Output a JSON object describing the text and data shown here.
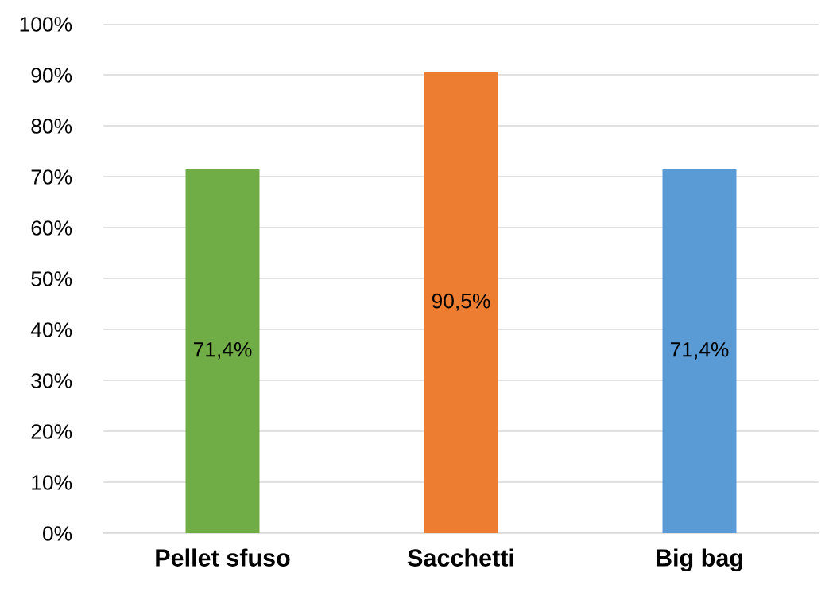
{
  "chart_data": {
    "type": "bar",
    "categories": [
      "Pellet sfuso",
      "Sacchetti",
      "Big bag"
    ],
    "values": [
      71.4,
      90.5,
      71.4
    ],
    "colors": [
      "#70ad47",
      "#ed7d31",
      "#5b9bd5"
    ],
    "value_labels": [
      "71,4%",
      "90,5%",
      "71,4%"
    ],
    "ylim": [
      0,
      100
    ],
    "yticks": [
      {
        "value": 0,
        "label": "0%"
      },
      {
        "value": 10,
        "label": "10%"
      },
      {
        "value": 20,
        "label": "20%"
      },
      {
        "value": 30,
        "label": "30%"
      },
      {
        "value": 40,
        "label": "40%"
      },
      {
        "value": 50,
        "label": "50%"
      },
      {
        "value": 60,
        "label": "60%"
      },
      {
        "value": 70,
        "label": "70%"
      },
      {
        "value": 80,
        "label": "80%"
      },
      {
        "value": 90,
        "label": "90%"
      },
      {
        "value": 100,
        "label": "100%"
      }
    ],
    "grid": "y",
    "legend": false
  }
}
